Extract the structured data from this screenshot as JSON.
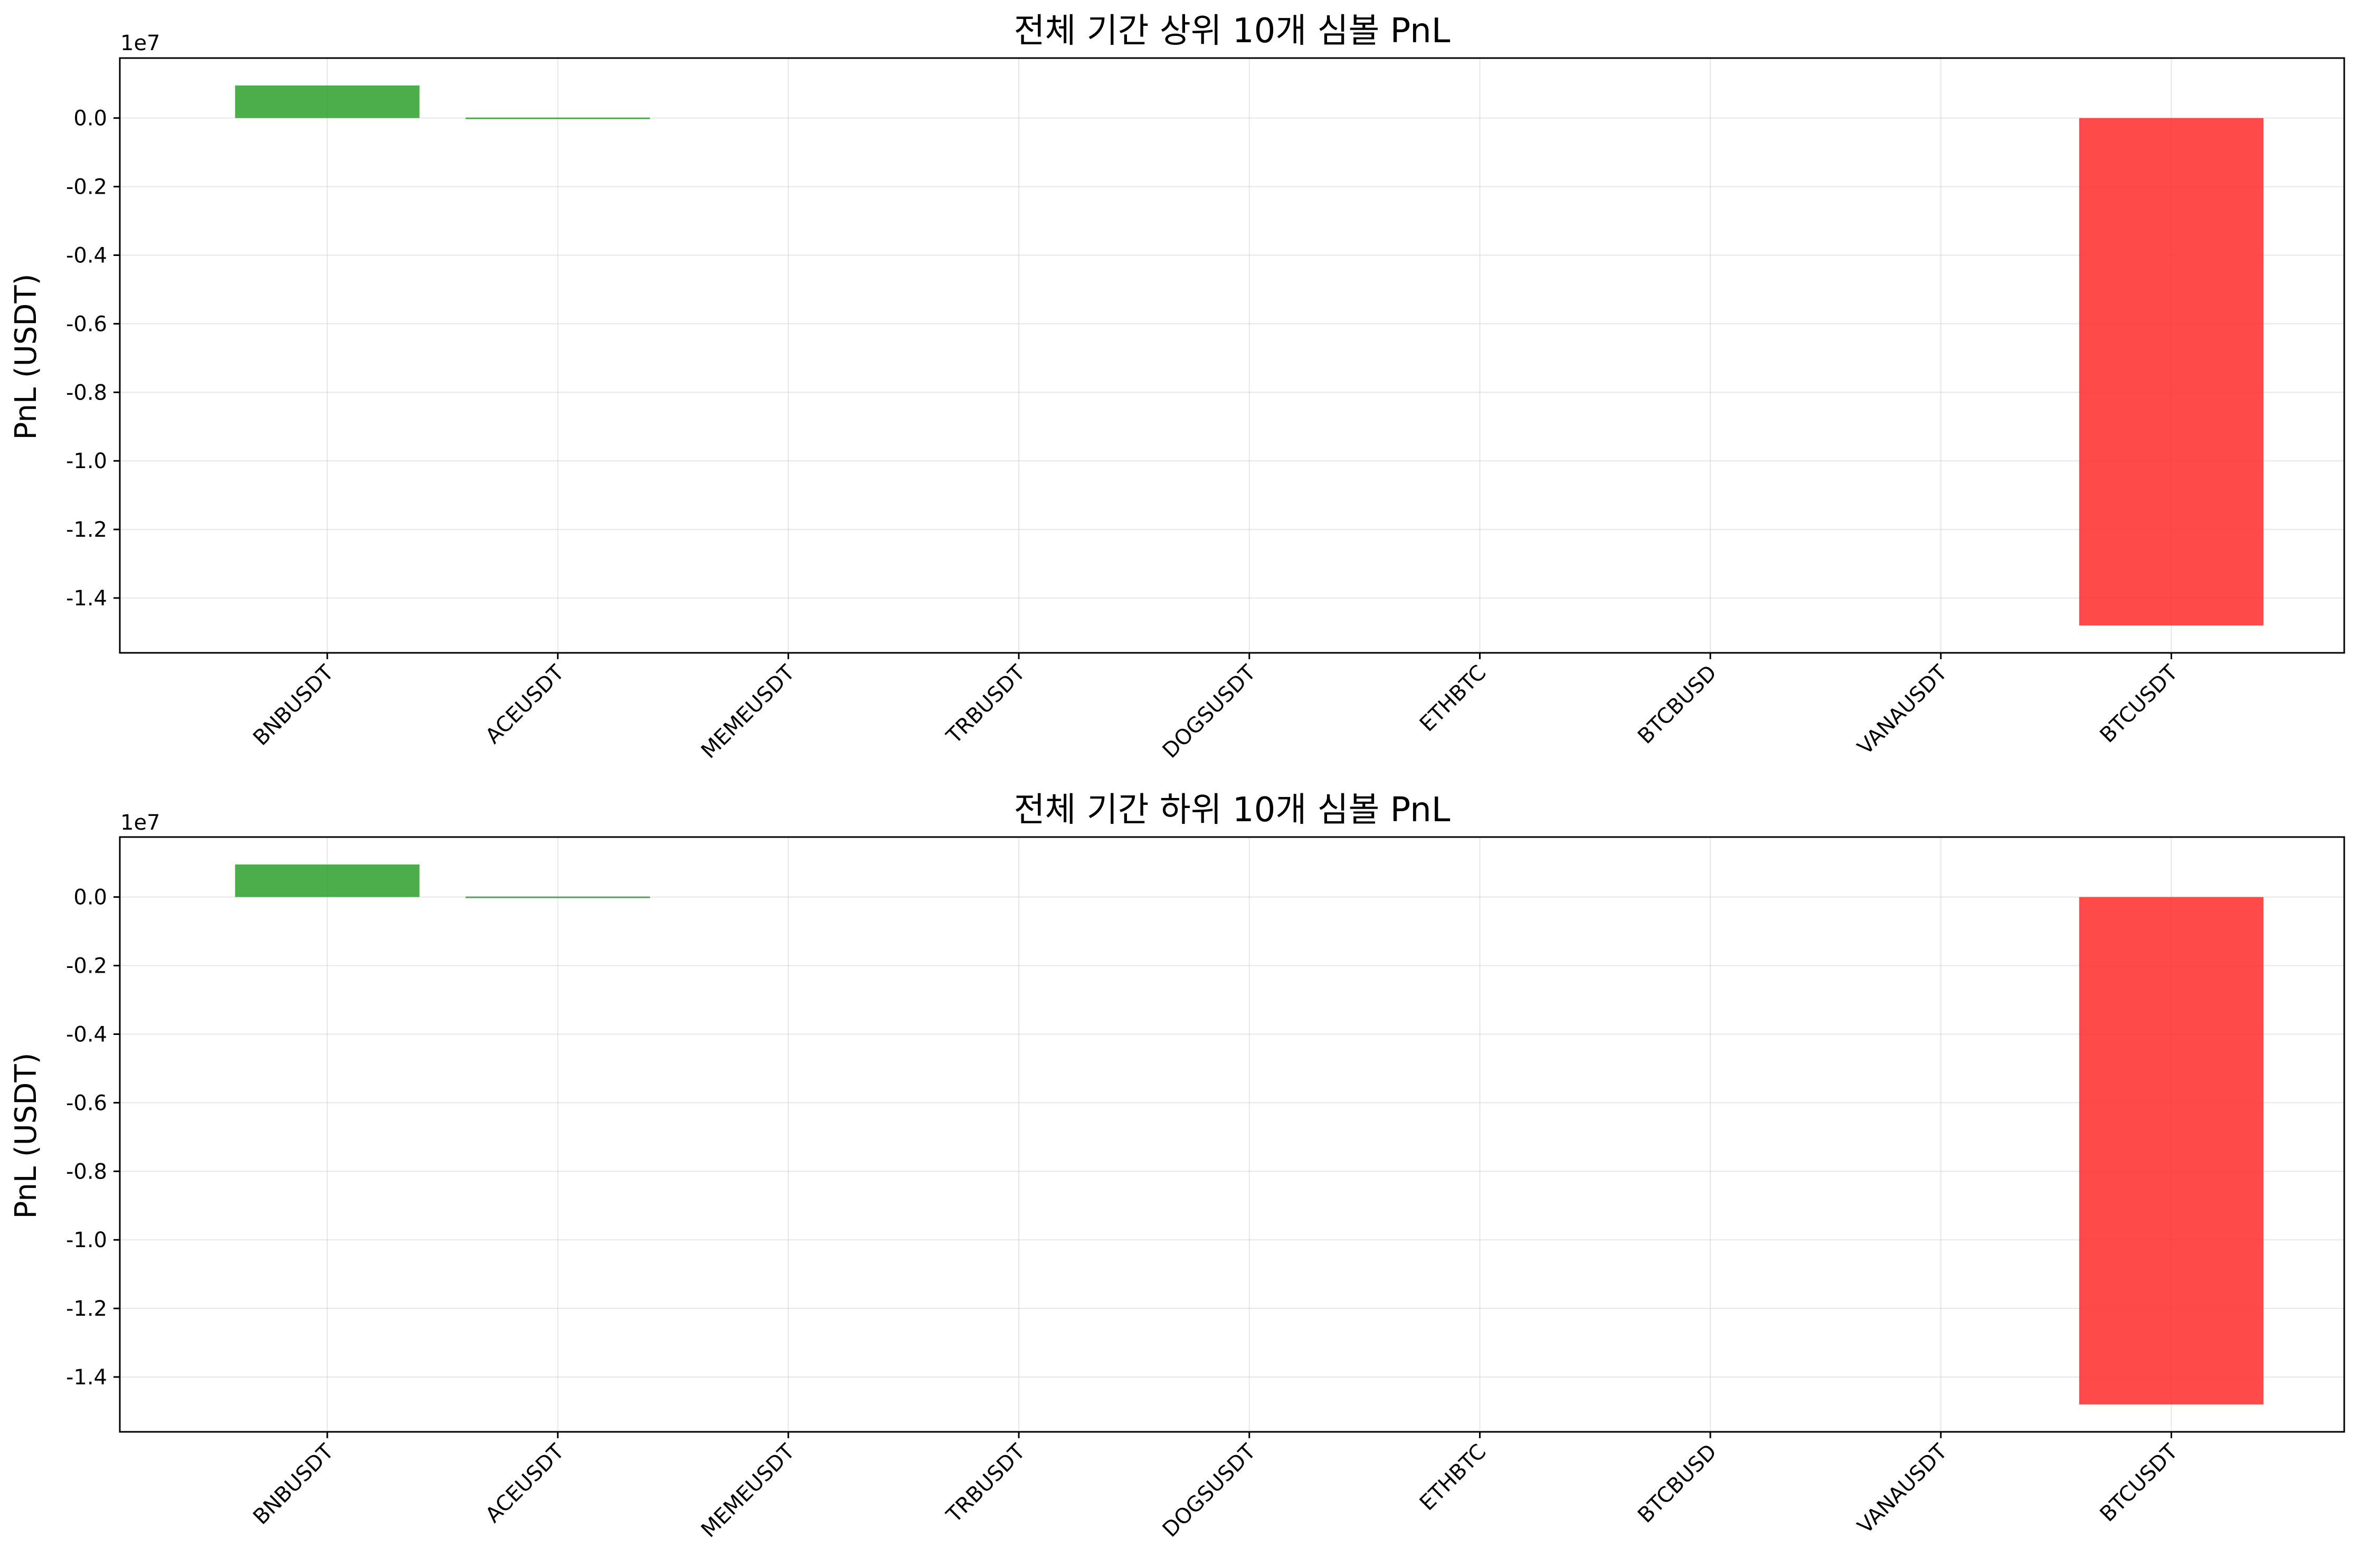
{
  "chart_data": [
    {
      "type": "bar",
      "title": "전체 기간 상위 10개 심볼 PnL",
      "xlabel": "",
      "ylabel": "PnL (USDT)",
      "y_offset_label": "1e7",
      "categories": [
        "BNBUSDT",
        "ACEUSDT",
        "MEMEUSDT",
        "TRBUSDT",
        "DOGSUSDT",
        "ETHBTC",
        "BTCBUSD",
        "VANAUSDT",
        "BTCUSDT"
      ],
      "values": [
        950000,
        15000,
        0,
        0,
        0,
        0,
        0,
        0,
        -14800000
      ],
      "yticks": [
        "0.0",
        "-0.2",
        "-0.4",
        "-0.6",
        "-0.8",
        "-1.0",
        "-1.2",
        "-1.4"
      ],
      "ytick_values": [
        0,
        -2000000,
        -4000000,
        -6000000,
        -8000000,
        -10000000,
        -12000000,
        -14000000
      ],
      "ylim": [
        -15600000,
        1750000
      ],
      "grid": true,
      "colors": {
        "positive": "#2ca02c",
        "negative": "#ff2a2a"
      },
      "bar_alpha": 0.85
    },
    {
      "type": "bar",
      "title": "전체 기간 하위 10개 심볼 PnL",
      "xlabel": "",
      "ylabel": "PnL (USDT)",
      "y_offset_label": "1e7",
      "categories": [
        "BNBUSDT",
        "ACEUSDT",
        "MEMEUSDT",
        "TRBUSDT",
        "DOGSUSDT",
        "ETHBTC",
        "BTCBUSD",
        "VANAUSDT",
        "BTCUSDT"
      ],
      "values": [
        950000,
        15000,
        0,
        0,
        0,
        0,
        0,
        0,
        -14800000
      ],
      "yticks": [
        "0.0",
        "-0.2",
        "-0.4",
        "-0.6",
        "-0.8",
        "-1.0",
        "-1.2",
        "-1.4"
      ],
      "ytick_values": [
        0,
        -2000000,
        -4000000,
        -6000000,
        -8000000,
        -10000000,
        -12000000,
        -14000000
      ],
      "ylim": [
        -15600000,
        1750000
      ],
      "grid": true,
      "colors": {
        "positive": "#2ca02c",
        "negative": "#ff2a2a"
      },
      "bar_alpha": 0.85
    }
  ]
}
